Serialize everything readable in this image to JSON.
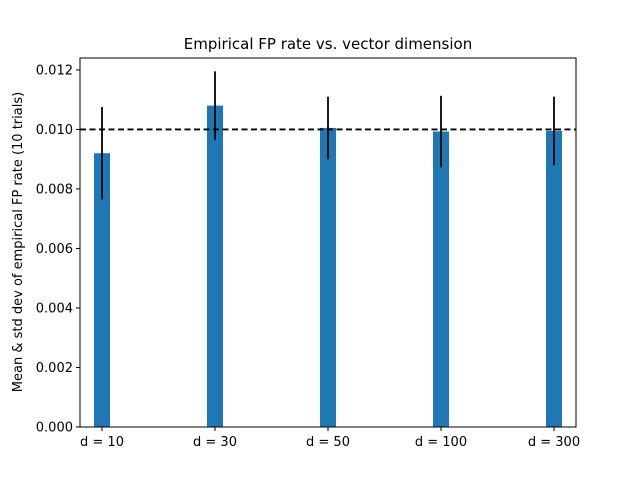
{
  "chart_data": {
    "type": "bar",
    "title": "Empirical FP rate vs. vector dimension",
    "xlabel": "",
    "ylabel": "Mean & std dev of empirical FP rate (10 trials)",
    "categories": [
      "d = 10",
      "d = 30",
      "d = 50",
      "d = 100",
      "d = 300"
    ],
    "values": [
      0.0092,
      0.0108,
      0.01005,
      0.00993,
      0.00995
    ],
    "errors": [
      0.00155,
      0.00115,
      0.00105,
      0.0012,
      0.00115
    ],
    "reference_line": {
      "value": 0.01,
      "style": "dashed",
      "color": "#000000"
    },
    "ylim": [
      0,
      0.0124
    ],
    "yticks": [
      "0.000",
      "0.002",
      "0.004",
      "0.006",
      "0.008",
      "0.010",
      "0.012"
    ],
    "ytick_values": [
      0,
      0.002,
      0.004,
      0.006,
      0.008,
      0.01,
      0.012
    ],
    "grid": false,
    "bar_color": "#1f77b4",
    "error_color": "#000000"
  }
}
